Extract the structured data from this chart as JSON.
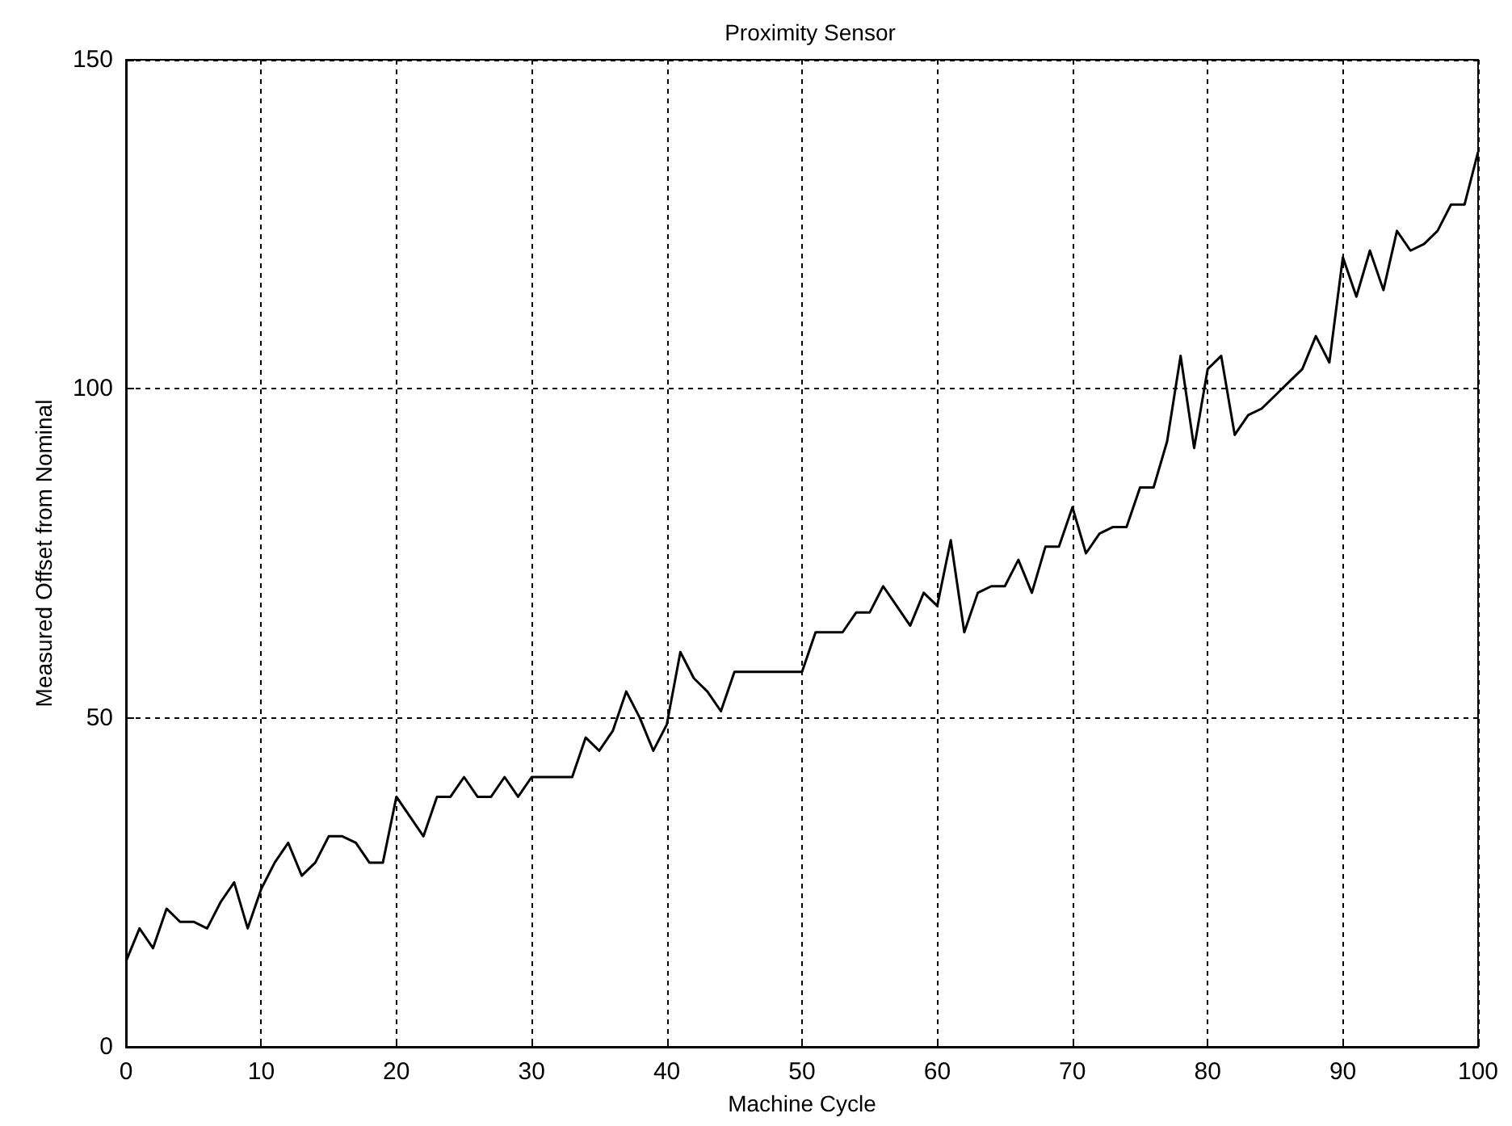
{
  "chart_data": {
    "type": "line",
    "title": "Proximity Sensor",
    "xlabel": "Machine Cycle",
    "ylabel": "Measured Offset from Nominal",
    "x": [
      0,
      1,
      2,
      3,
      4,
      5,
      6,
      7,
      8,
      9,
      10,
      11,
      12,
      13,
      14,
      15,
      16,
      17,
      18,
      19,
      20,
      21,
      22,
      23,
      24,
      25,
      26,
      27,
      28,
      29,
      30,
      31,
      32,
      33,
      34,
      35,
      36,
      37,
      38,
      39,
      40,
      41,
      42,
      43,
      44,
      45,
      46,
      47,
      48,
      49,
      50,
      51,
      52,
      53,
      54,
      55,
      56,
      57,
      58,
      59,
      60,
      61,
      62,
      63,
      64,
      65,
      66,
      67,
      68,
      69,
      70,
      71,
      72,
      73,
      74,
      75,
      76,
      77,
      78,
      79,
      80,
      81,
      82,
      83,
      84,
      85,
      86,
      87,
      88,
      89,
      90,
      91,
      92,
      93,
      94,
      95,
      96,
      97,
      98,
      99,
      100
    ],
    "series": [
      {
        "color": "#000000",
        "values": [
          13,
          18,
          15,
          21,
          19,
          19,
          18,
          22,
          25,
          18,
          24,
          28,
          31,
          26,
          28,
          32,
          32,
          31,
          28,
          28,
          38,
          35,
          32,
          38,
          38,
          41,
          38,
          38,
          41,
          38,
          41,
          41,
          41,
          41,
          47,
          45,
          48,
          54,
          50,
          45,
          49,
          60,
          56,
          54,
          51,
          57,
          57,
          57,
          57,
          57,
          57,
          63,
          63,
          63,
          66,
          66,
          70,
          67,
          64,
          69,
          67,
          77,
          63,
          69,
          70,
          70,
          74,
          69,
          76,
          76,
          82,
          75,
          78,
          79,
          79,
          85,
          85,
          92,
          105,
          91,
          103,
          105,
          93,
          96,
          97,
          99,
          101,
          103,
          108,
          104,
          120,
          114,
          121,
          115,
          124,
          121,
          122,
          124,
          128,
          128,
          136
        ]
      }
    ],
    "xlim": [
      0,
      100
    ],
    "xticks": [
      0,
      10,
      20,
      30,
      40,
      50,
      60,
      70,
      80,
      90,
      100
    ],
    "ylim": [
      0,
      150
    ],
    "yticks": [
      0,
      50,
      100,
      150
    ],
    "grid": true,
    "marker": "none",
    "line_style": "solid"
  }
}
